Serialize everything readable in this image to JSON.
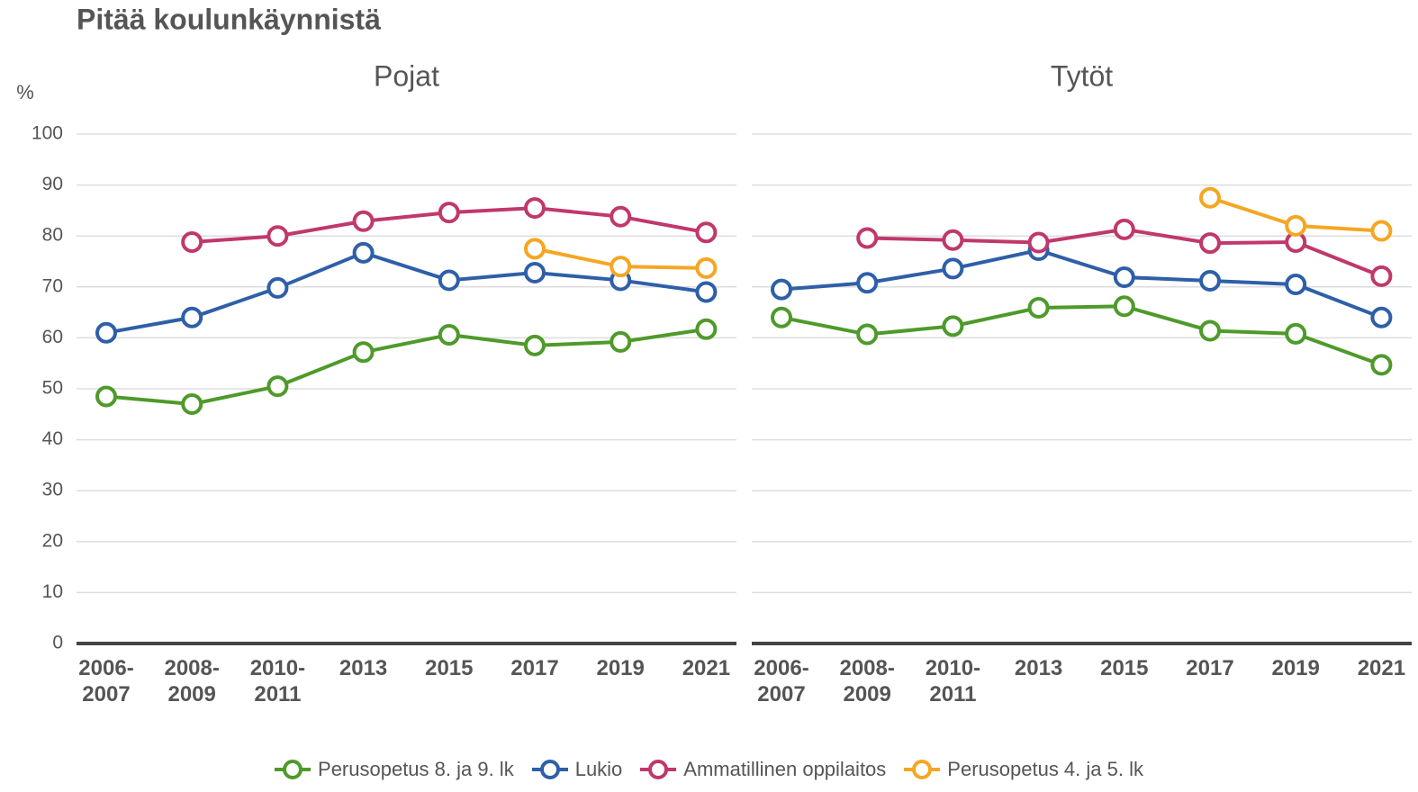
{
  "chart_data": {
    "type": "line",
    "title": "Pitää koulunkäynnistä",
    "y_label": "%",
    "categories": [
      "2006-2007",
      "2008-2009",
      "2010-2011",
      "2013",
      "2015",
      "2017",
      "2019",
      "2021"
    ],
    "ylim": [
      0,
      100
    ],
    "yticks": [
      0,
      10,
      20,
      30,
      40,
      50,
      60,
      70,
      80,
      90,
      100
    ],
    "grid": true,
    "series": [
      {
        "name": "Perusopetus 8. ja 9. lk",
        "color": "#4e9a2a"
      },
      {
        "name": "Lukio",
        "color": "#2e5fa8"
      },
      {
        "name": "Ammatillinen oppilaitos",
        "color": "#c0386c"
      },
      {
        "name": "Perusopetus 4. ja 5. lk",
        "color": "#f5a623"
      }
    ],
    "panels": [
      {
        "title": "Pojat",
        "series": [
          {
            "values": [
              48.5,
              47,
              50.5,
              57.2,
              60.6,
              58.5,
              59.2,
              61.7
            ]
          },
          {
            "values": [
              61,
              64,
              69.8,
              76.7,
              71.3,
              72.8,
              71.3,
              69
            ]
          },
          {
            "values": [
              null,
              78.8,
              80,
              82.9,
              84.6,
              85.5,
              83.8,
              80.7
            ]
          },
          {
            "values": [
              null,
              null,
              null,
              null,
              null,
              77.5,
              74,
              73.7
            ]
          }
        ]
      },
      {
        "title": "Tytöt",
        "series": [
          {
            "values": [
              64,
              60.7,
              62.3,
              65.9,
              66.2,
              61.4,
              60.8,
              54.7
            ]
          },
          {
            "values": [
              69.5,
              70.8,
              73.6,
              77.2,
              71.9,
              71.2,
              70.5,
              64
            ]
          },
          {
            "values": [
              null,
              79.6,
              79.2,
              78.7,
              81.3,
              78.6,
              78.8,
              72.1
            ]
          },
          {
            "values": [
              null,
              null,
              null,
              null,
              null,
              87.5,
              82,
              81
            ]
          }
        ]
      }
    ]
  }
}
